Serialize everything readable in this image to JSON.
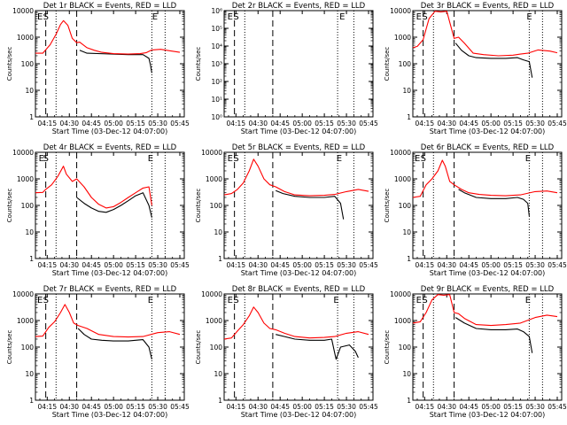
{
  "colors": {
    "events": "#000000",
    "lld": "#ff0000",
    "axes": "#000000",
    "background": "#ffffff"
  },
  "chart_data": [
    {
      "type": "line",
      "panel": "det1r",
      "title": "Det 1r BLACK = Events, RED = LLD",
      "xlabel": "Start Time (03-Dec-12 04:07:00)",
      "ylabel": "Counts/sec",
      "yscale": "log",
      "ylim": [
        1,
        10000
      ],
      "xlim": [
        "04:07",
        "05:48"
      ],
      "x_ticks": [
        "04:15",
        "04:30",
        "04:45",
        "05:00",
        "05:15",
        "05:30",
        "05:45"
      ],
      "y_ticks": [
        "1",
        "10",
        "100",
        "1000",
        "10000"
      ],
      "markers": [
        {
          "label": "E",
          "x": "04:07"
        },
        {
          "label": "S",
          "x": "04:11"
        },
        {
          "label": "E",
          "x": "05:25"
        }
      ],
      "dashed_lines": [
        "04:14",
        "04:35"
      ],
      "dotted_lines": [
        "04:21",
        "05:26",
        "05:35"
      ],
      "series": [
        {
          "name": "Events",
          "color": "#000000",
          "x": [
            "04:37",
            "04:42",
            "05:10",
            "05:20",
            "05:24",
            "05:25",
            "05:26"
          ],
          "y": [
            320,
            250,
            220,
            220,
            160,
            95,
            45
          ]
        },
        {
          "name": "LLD",
          "color": "#ff0000",
          "x": [
            "04:07",
            "04:12",
            "04:17",
            "04:21",
            "04:24",
            "04:26",
            "04:29",
            "04:32",
            "04:35",
            "04:37",
            "04:42",
            "04:47",
            "04:52",
            "05:00",
            "05:10",
            "05:18",
            "05:22",
            "05:26",
            "05:32",
            "05:38",
            "05:45"
          ],
          "y": [
            250,
            250,
            520,
            1300,
            3000,
            4200,
            2800,
            900,
            620,
            650,
            400,
            320,
            270,
            240,
            230,
            240,
            260,
            330,
            350,
            310,
            270
          ]
        }
      ]
    },
    {
      "type": "line",
      "panel": "det2r",
      "title": "Det 2r BLACK = Events, RED = LLD",
      "xlabel": "Start Time (03-Dec-12 04:07:00)",
      "ylabel": "Counts/sec",
      "yscale": "log",
      "ylim": [
        1,
        1000000
      ],
      "xlim": [
        "04:07",
        "05:48"
      ],
      "x_ticks": [
        "04:15",
        "04:30",
        "04:45",
        "05:00",
        "05:15",
        "05:30",
        "05:45"
      ],
      "y_ticks": [
        "10⁰",
        "10¹",
        "10²",
        "10³",
        "10⁴",
        "10⁵",
        "10⁶"
      ],
      "markers": [
        {
          "label": "E",
          "x": "04:08"
        },
        {
          "label": "S",
          "x": "04:12"
        },
        {
          "label": "E",
          "x": "05:24"
        }
      ],
      "dashed_lines": [
        "04:14",
        "04:40"
      ],
      "dotted_lines": [
        "04:21",
        "05:24",
        "05:35"
      ],
      "series": []
    },
    {
      "type": "line",
      "panel": "det3r",
      "title": "Det 3r BLACK = Events, RED = LLD",
      "xlabel": "Start Time (03-Dec-12 04:07:00)",
      "ylabel": "Counts/sec",
      "yscale": "log",
      "ylim": [
        1,
        10000
      ],
      "xlim": [
        "04:07",
        "05:48"
      ],
      "x_ticks": [
        "04:15",
        "04:30",
        "04:45",
        "05:00",
        "05:15",
        "05:30",
        "05:45"
      ],
      "y_ticks": [
        "1",
        "10",
        "100",
        "1000",
        "10000"
      ],
      "markers": [
        {
          "label": "E",
          "x": "04:08"
        },
        {
          "label": "S",
          "x": "04:12"
        },
        {
          "label": "E",
          "x": "05:23"
        }
      ],
      "dashed_lines": [
        "04:14",
        "04:35"
      ],
      "dotted_lines": [
        "04:21",
        "05:26",
        "05:35"
      ],
      "series": [
        {
          "name": "Events",
          "color": "#000000",
          "x": [
            "04:36",
            "04:40",
            "04:45",
            "04:50",
            "05:00",
            "05:10",
            "05:18",
            "05:22",
            "05:26",
            "05:28"
          ],
          "y": [
            600,
            320,
            200,
            170,
            160,
            160,
            170,
            140,
            120,
            30
          ]
        },
        {
          "name": "LLD",
          "color": "#ff0000",
          "x": [
            "04:07",
            "04:10",
            "04:14",
            "04:18",
            "04:22",
            "04:26",
            "04:30",
            "04:35",
            "04:38",
            "04:42",
            "04:48",
            "04:55",
            "05:05",
            "05:15",
            "05:20",
            "05:25",
            "05:32",
            "05:40",
            "05:45"
          ],
          "y": [
            400,
            450,
            800,
            5000,
            9500,
            9000,
            9500,
            900,
            1000,
            600,
            250,
            220,
            200,
            210,
            230,
            250,
            330,
            300,
            260
          ]
        }
      ]
    },
    {
      "type": "line",
      "panel": "det4r",
      "title": "Det 4r BLACK = Events, RED = LLD",
      "xlabel": "Start Time (03-Dec-12 04:07:00)",
      "ylabel": "Counts/sec",
      "yscale": "log",
      "ylim": [
        1,
        10000
      ],
      "xlim": [
        "04:07",
        "05:48"
      ],
      "x_ticks": [
        "04:15",
        "04:30",
        "04:45",
        "05:00",
        "05:15",
        "05:30",
        "05:45"
      ],
      "y_ticks": [
        "1",
        "10",
        "100",
        "1000",
        "10000"
      ],
      "markers": [
        {
          "label": "E",
          "x": "04:08"
        },
        {
          "label": "S",
          "x": "04:11"
        },
        {
          "label": "E",
          "x": "05:22"
        }
      ],
      "dashed_lines": [
        "04:14",
        "04:35"
      ],
      "dotted_lines": [
        "04:21",
        "05:26",
        "05:35"
      ],
      "series": [
        {
          "name": "Events",
          "color": "#000000",
          "x": [
            "04:35",
            "04:40",
            "04:45",
            "04:50",
            "04:55",
            "05:00",
            "05:05",
            "05:10",
            "05:15",
            "05:20",
            "05:24",
            "05:26"
          ],
          "y": [
            200,
            120,
            80,
            60,
            55,
            70,
            100,
            150,
            230,
            300,
            100,
            35
          ]
        },
        {
          "name": "LLD",
          "color": "#ff0000",
          "x": [
            "04:07",
            "04:12",
            "04:14",
            "04:18",
            "04:22",
            "04:26",
            "04:28",
            "04:32",
            "04:35",
            "04:40",
            "04:45",
            "04:50",
            "04:55",
            "05:00",
            "05:05",
            "05:10",
            "05:15",
            "05:20",
            "05:24",
            "05:26"
          ],
          "y": [
            300,
            310,
            400,
            600,
            1200,
            3000,
            1500,
            800,
            1000,
            500,
            200,
            110,
            80,
            90,
            130,
            200,
            300,
            450,
            500,
            100
          ]
        }
      ]
    },
    {
      "type": "line",
      "panel": "det5r",
      "title": "Det 5r BLACK = Events, RED = LLD",
      "xlabel": "Start Time (03-Dec-12 04:07:00)",
      "ylabel": "Counts/sec",
      "yscale": "log",
      "ylim": [
        1,
        10000
      ],
      "xlim": [
        "04:07",
        "05:48"
      ],
      "x_ticks": [
        "04:15",
        "04:30",
        "04:45",
        "05:00",
        "05:15",
        "05:30",
        "05:45"
      ],
      "y_ticks": [
        "1",
        "10",
        "100",
        "1000",
        "10000"
      ],
      "markers": [
        {
          "label": "E",
          "x": "04:08"
        },
        {
          "label": "S",
          "x": "04:12"
        },
        {
          "label": "E",
          "x": "05:22"
        }
      ],
      "dashed_lines": [
        "04:14",
        "04:40"
      ],
      "dotted_lines": [
        "04:21",
        "05:24",
        "05:35"
      ],
      "series": [
        {
          "name": "Events",
          "color": "#000000",
          "x": [
            "04:42",
            "04:47",
            "04:55",
            "05:05",
            "05:15",
            "05:22",
            "05:26",
            "05:28"
          ],
          "y": [
            360,
            280,
            220,
            200,
            200,
            220,
            120,
            30
          ]
        },
        {
          "name": "LLD",
          "color": "#ff0000",
          "x": [
            "04:07",
            "04:12",
            "04:16",
            "04:20",
            "04:24",
            "04:27",
            "04:30",
            "04:34",
            "04:38",
            "04:42",
            "04:48",
            "04:55",
            "05:05",
            "05:15",
            "05:22",
            "05:30",
            "05:38",
            "05:45"
          ],
          "y": [
            250,
            280,
            400,
            700,
            2000,
            5500,
            3000,
            1000,
            600,
            500,
            330,
            250,
            230,
            240,
            260,
            330,
            400,
            340
          ]
        }
      ]
    },
    {
      "type": "line",
      "panel": "det6r",
      "title": "Det 6r BLACK = Events, RED = LLD",
      "xlabel": "Start Time (03-Dec-12 04:07:00)",
      "ylabel": "Counts/sec",
      "yscale": "log",
      "ylim": [
        1,
        10000
      ],
      "xlim": [
        "04:07",
        "05:48"
      ],
      "x_ticks": [
        "04:15",
        "04:30",
        "04:45",
        "05:00",
        "05:15",
        "05:30",
        "05:45"
      ],
      "y_ticks": [
        "1",
        "10",
        "100",
        "1000",
        "10000"
      ],
      "markers": [
        {
          "label": "E",
          "x": "04:07"
        },
        {
          "label": "S",
          "x": "04:11"
        },
        {
          "label": "E",
          "x": "05:22"
        }
      ],
      "dashed_lines": [
        "04:14",
        "04:35"
      ],
      "dotted_lines": [
        "04:21",
        "05:26",
        "05:35"
      ],
      "series": [
        {
          "name": "Events",
          "color": "#000000",
          "x": [
            "04:38",
            "04:42",
            "04:50",
            "05:00",
            "05:10",
            "05:18",
            "05:22",
            "05:25",
            "05:26"
          ],
          "y": [
            400,
            300,
            200,
            180,
            180,
            200,
            170,
            120,
            40
          ]
        },
        {
          "name": "LLD",
          "color": "#ff0000",
          "x": [
            "04:07",
            "04:12",
            "04:16",
            "04:20",
            "04:24",
            "04:27",
            "04:29",
            "04:32",
            "04:35",
            "04:40",
            "04:45",
            "04:52",
            "05:00",
            "05:10",
            "05:20",
            "05:30",
            "05:38",
            "05:45"
          ],
          "y": [
            200,
            220,
            600,
            1000,
            2000,
            5000,
            3000,
            800,
            600,
            400,
            300,
            260,
            240,
            230,
            250,
            330,
            350,
            300
          ]
        }
      ]
    },
    {
      "type": "line",
      "panel": "det7r",
      "title": "Det 7r BLACK = Events, RED = LLD",
      "xlabel": "Start Time (03-Dec-12 04:07:00)",
      "ylabel": "Counts/sec",
      "yscale": "log",
      "ylim": [
        1,
        10000
      ],
      "xlim": [
        "04:07",
        "05:48"
      ],
      "x_ticks": [
        "04:15",
        "04:30",
        "04:45",
        "05:00",
        "05:15",
        "05:30",
        "05:45"
      ],
      "y_ticks": [
        "1",
        "10",
        "100",
        "1000",
        "10000"
      ],
      "markers": [
        {
          "label": "E",
          "x": "04:07"
        },
        {
          "label": "S",
          "x": "04:11"
        },
        {
          "label": "E",
          "x": "05:22"
        }
      ],
      "dashed_lines": [
        "04:14",
        "04:35"
      ],
      "dotted_lines": [
        "04:21",
        "05:26",
        "05:35"
      ],
      "series": [
        {
          "name": "Events",
          "color": "#000000",
          "x": [
            "04:36",
            "04:40",
            "04:45",
            "04:52",
            "05:00",
            "05:10",
            "05:20",
            "05:24",
            "05:26"
          ],
          "y": [
            500,
            300,
            200,
            180,
            170,
            170,
            190,
            100,
            35
          ]
        },
        {
          "name": "LLD",
          "color": "#ff0000",
          "x": [
            "04:07",
            "04:12",
            "04:16",
            "04:20",
            "04:24",
            "04:27",
            "04:30",
            "04:33",
            "04:36",
            "04:42",
            "04:50",
            "05:00",
            "05:10",
            "05:20",
            "05:30",
            "05:38",
            "05:45"
          ],
          "y": [
            250,
            260,
            550,
            900,
            2000,
            4000,
            2000,
            800,
            650,
            500,
            300,
            250,
            240,
            250,
            350,
            380,
            300
          ]
        }
      ]
    },
    {
      "type": "line",
      "panel": "det8r",
      "title": "Det 8r BLACK = Events, RED = LLD",
      "xlabel": "Start Time (03-Dec-12 04:07:00)",
      "ylabel": "Counts/sec",
      "yscale": "log",
      "ylim": [
        1,
        10000
      ],
      "xlim": [
        "04:07",
        "05:48"
      ],
      "x_ticks": [
        "04:15",
        "04:30",
        "04:45",
        "05:00",
        "05:15",
        "05:30",
        "05:45"
      ],
      "y_ticks": [
        "1",
        "10",
        "100",
        "1000",
        "10000"
      ],
      "markers": [
        {
          "label": "E",
          "x": "04:08"
        },
        {
          "label": "S",
          "x": "04:12"
        },
        {
          "label": "E",
          "x": "05:20"
        }
      ],
      "dashed_lines": [
        "04:14",
        "04:40"
      ],
      "dotted_lines": [
        "04:21",
        "05:24",
        "05:35"
      ],
      "series": [
        {
          "name": "Events",
          "color": "#000000",
          "x": [
            "04:42",
            "04:48",
            "04:55",
            "05:05",
            "05:15",
            "05:20",
            "05:22",
            "05:23",
            "05:26",
            "05:32",
            "05:36",
            "05:38"
          ],
          "y": [
            300,
            250,
            200,
            180,
            180,
            200,
            60,
            35,
            100,
            120,
            70,
            40
          ]
        },
        {
          "name": "LLD",
          "color": "#ff0000",
          "x": [
            "04:07",
            "04:12",
            "04:16",
            "04:20",
            "04:24",
            "04:27",
            "04:30",
            "04:34",
            "04:38",
            "04:42",
            "04:48",
            "04:55",
            "05:05",
            "05:15",
            "05:22",
            "05:30",
            "05:38",
            "05:45"
          ],
          "y": [
            200,
            220,
            400,
            700,
            1500,
            3200,
            2000,
            800,
            500,
            450,
            330,
            250,
            220,
            230,
            250,
            330,
            380,
            300
          ]
        }
      ]
    },
    {
      "type": "line",
      "panel": "det9r",
      "title": "Det 9r BLACK = Events, RED = LLD",
      "xlabel": "Start Time (03-Dec-12 04:07:00)",
      "ylabel": "Counts/sec",
      "yscale": "log",
      "ylim": [
        1,
        10000
      ],
      "xlim": [
        "04:07",
        "05:48"
      ],
      "x_ticks": [
        "04:15",
        "04:30",
        "04:45",
        "05:00",
        "05:15",
        "05:30",
        "05:45"
      ],
      "y_ticks": [
        "1",
        "10",
        "100",
        "1000",
        "10000"
      ],
      "markers": [
        {
          "label": "E",
          "x": "04:08"
        },
        {
          "label": "S",
          "x": "04:12"
        },
        {
          "label": "E",
          "x": "05:22"
        }
      ],
      "dashed_lines": [
        "04:14",
        "04:35"
      ],
      "dotted_lines": [
        "04:21",
        "05:26",
        "05:35"
      ],
      "series": [
        {
          "name": "Events",
          "color": "#000000",
          "x": [
            "04:36",
            "04:42",
            "04:50",
            "05:00",
            "05:10",
            "05:18",
            "05:22",
            "05:26",
            "05:28"
          ],
          "y": [
            1300,
            800,
            500,
            450,
            450,
            480,
            380,
            250,
            60
          ]
        },
        {
          "name": "LLD",
          "color": "#ff0000",
          "x": [
            "04:07",
            "04:12",
            "04:16",
            "04:20",
            "04:24",
            "04:28",
            "04:32",
            "04:35",
            "04:38",
            "04:42",
            "04:50",
            "05:00",
            "05:10",
            "05:20",
            "05:30",
            "05:38",
            "05:45"
          ],
          "y": [
            800,
            900,
            2000,
            6000,
            9500,
            9000,
            9500,
            2000,
            1800,
            1200,
            700,
            650,
            700,
            800,
            1300,
            1600,
            1400
          ]
        }
      ]
    }
  ]
}
